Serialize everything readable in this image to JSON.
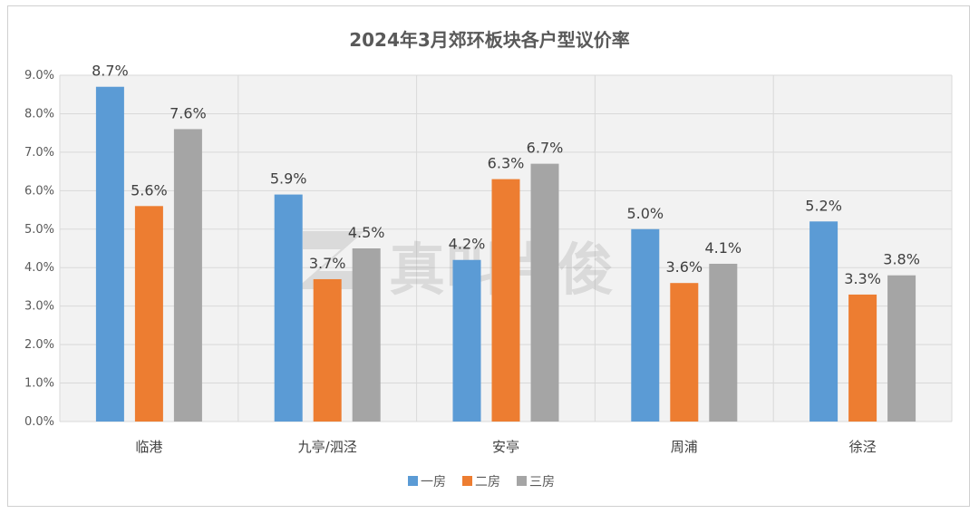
{
  "watermark": {
    "text": "真叫卢俊"
  },
  "chart_data": {
    "type": "bar",
    "title": "2024年3月郊环板块各户型议价率",
    "categories": [
      "临港",
      "九亭/泗泾",
      "安亭",
      "周浦",
      "徐泾"
    ],
    "series": [
      {
        "name": "一房",
        "values": [
          8.7,
          5.9,
          4.2,
          5.0,
          5.2
        ],
        "color": "#5b9bd5"
      },
      {
        "name": "二房",
        "values": [
          5.6,
          3.7,
          6.3,
          3.6,
          3.3
        ],
        "color": "#ed7d31"
      },
      {
        "name": "三房",
        "values": [
          7.6,
          4.5,
          6.7,
          4.1,
          3.8
        ],
        "color": "#a5a5a5"
      }
    ],
    "data_labels": [
      [
        "8.7%",
        "5.6%",
        "7.6%"
      ],
      [
        "5.9%",
        "3.7%",
        "4.5%"
      ],
      [
        "4.2%",
        "6.3%",
        "6.7%"
      ],
      [
        "5.0%",
        "3.6%",
        "4.1%"
      ],
      [
        "5.2%",
        "3.3%",
        "3.8%"
      ]
    ],
    "y_ticks": [
      "0.0%",
      "1.0%",
      "2.0%",
      "3.0%",
      "4.0%",
      "5.0%",
      "6.0%",
      "7.0%",
      "8.0%",
      "9.0%"
    ],
    "ylim": [
      0,
      9
    ],
    "grid": true,
    "legend_position": "bottom"
  }
}
